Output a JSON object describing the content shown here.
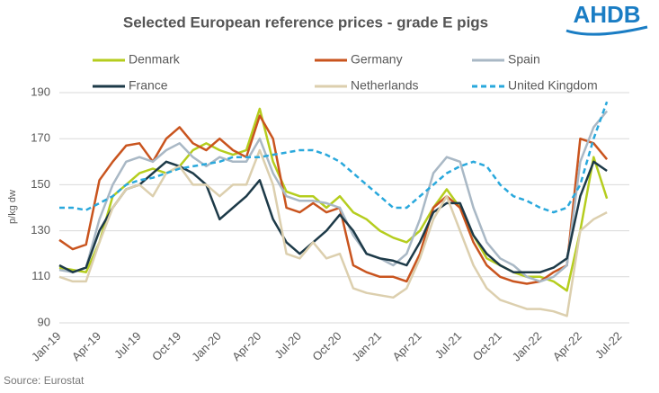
{
  "chart_data": {
    "type": "line",
    "title": "Selected European reference prices - grade E pigs",
    "logo": "AHDB",
    "y_label": "p/kg dw",
    "source": "Source: Eurostat",
    "categories": [
      "Jan-19",
      null,
      null,
      "Apr-19",
      null,
      null,
      "Jul-19",
      null,
      null,
      "Oct-19",
      null,
      null,
      "Jan-20",
      null,
      null,
      "Apr-20",
      null,
      null,
      "Jul-20",
      null,
      null,
      "Oct-20",
      null,
      null,
      "Jan-21",
      null,
      null,
      "Apr-21",
      null,
      null,
      "Jul-21",
      null,
      null,
      "Oct-21",
      null,
      null,
      "Jan-22",
      null,
      null,
      "Apr-22",
      null,
      null,
      "Jul-22"
    ],
    "ylim": [
      90,
      190
    ],
    "yticks": [
      90,
      110,
      130,
      150,
      170,
      190
    ],
    "grid": true,
    "series": [
      {
        "name": "Denmark",
        "color": "#b5cd1e",
        "dash": false,
        "values": [
          114,
          113,
          112,
          125,
          145,
          150,
          155,
          157,
          155,
          158,
          165,
          168,
          165,
          163,
          165,
          183,
          160,
          147,
          145,
          145,
          140,
          145,
          138,
          135,
          130,
          127,
          125,
          130,
          140,
          148,
          140,
          128,
          118,
          115,
          112,
          110,
          110,
          108,
          104,
          130,
          162,
          144,
          null
        ]
      },
      {
        "name": "Germany",
        "color": "#c9541e",
        "dash": false,
        "values": [
          126,
          122,
          124,
          152,
          160,
          167,
          168,
          160,
          170,
          175,
          168,
          165,
          170,
          165,
          162,
          180,
          170,
          140,
          138,
          142,
          138,
          140,
          115,
          112,
          110,
          110,
          108,
          120,
          140,
          145,
          140,
          125,
          115,
          110,
          108,
          107,
          108,
          112,
          115,
          170,
          168,
          161,
          null
        ]
      },
      {
        "name": "Spain",
        "color": "#a9b8c5",
        "dash": false,
        "values": [
          113,
          112,
          114,
          135,
          150,
          160,
          162,
          160,
          165,
          168,
          162,
          158,
          162,
          160,
          160,
          170,
          155,
          145,
          143,
          143,
          142,
          140,
          128,
          120,
          118,
          115,
          120,
          135,
          155,
          162,
          160,
          140,
          125,
          118,
          115,
          110,
          108,
          110,
          115,
          160,
          175,
          182,
          null
        ]
      },
      {
        "name": "France",
        "color": "#1d3a48",
        "dash": false,
        "values": [
          115,
          112,
          114,
          130,
          140,
          148,
          150,
          155,
          160,
          158,
          155,
          150,
          135,
          140,
          145,
          152,
          135,
          125,
          120,
          125,
          130,
          137,
          130,
          120,
          118,
          117,
          115,
          125,
          138,
          142,
          142,
          128,
          120,
          115,
          112,
          112,
          112,
          114,
          118,
          145,
          160,
          156,
          null
        ]
      },
      {
        "name": "Netherlands",
        "color": "#dccfae",
        "dash": false,
        "values": [
          110,
          108,
          108,
          125,
          140,
          148,
          150,
          145,
          155,
          158,
          150,
          150,
          145,
          150,
          150,
          165,
          150,
          120,
          118,
          125,
          118,
          120,
          105,
          103,
          102,
          101,
          105,
          118,
          135,
          145,
          130,
          115,
          105,
          100,
          98,
          96,
          96,
          95,
          93,
          130,
          135,
          138,
          null
        ]
      },
      {
        "name": "United Kingdom",
        "color": "#29a8dc",
        "dash": true,
        "values": [
          140,
          140,
          139,
          142,
          145,
          150,
          152,
          153,
          155,
          157,
          158,
          159,
          160,
          162,
          162,
          162,
          163,
          164,
          165,
          165,
          163,
          160,
          155,
          150,
          145,
          140,
          140,
          145,
          150,
          155,
          158,
          160,
          158,
          150,
          145,
          143,
          140,
          138,
          140,
          150,
          170,
          186,
          null
        ]
      }
    ]
  }
}
